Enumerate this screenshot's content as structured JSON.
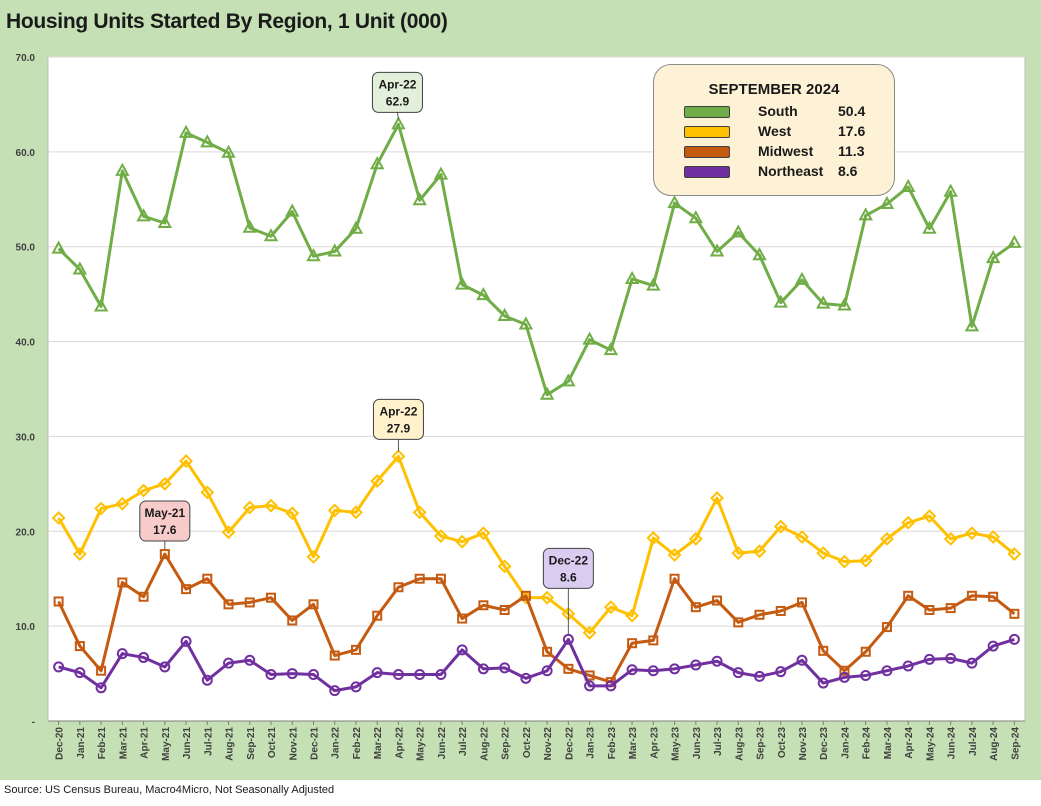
{
  "chart_data": {
    "type": "line",
    "title": "Housing Units Started By Region, 1 Unit (000)",
    "source": "Source: US Census Bureau, Macro4Micro, Not Seasonally Adjusted",
    "ylim": [
      0,
      70
    ],
    "yticks": [
      "-",
      "10.0",
      "20.0",
      "30.0",
      "40.0",
      "50.0",
      "60.0",
      "70.0"
    ],
    "grid": true,
    "categories": [
      "Dec-20",
      "Jan-21",
      "Feb-21",
      "Mar-21",
      "Apr-21",
      "May-21",
      "Jun-21",
      "Jul-21",
      "Aug-21",
      "Sep-21",
      "Oct-21",
      "Nov-21",
      "Dec-21",
      "Jan-22",
      "Feb-22",
      "Mar-22",
      "Apr-22",
      "May-22",
      "Jun-22",
      "Jul-22",
      "Aug-22",
      "Sep-22",
      "Oct-22",
      "Nov-22",
      "Dec-22",
      "Jan-23",
      "Feb-23",
      "Mar-23",
      "Apr-23",
      "May-23",
      "Jun-23",
      "Jul-23",
      "Aug-23",
      "Sep-23",
      "Oct-23",
      "Nov-23",
      "Dec-23",
      "Jan-24",
      "Feb-24",
      "Mar-24",
      "Apr-24",
      "May-24",
      "Jun-24",
      "Jul-24",
      "Aug-24",
      "Sep-24"
    ],
    "series": [
      {
        "name": "South",
        "color": "#70ad47",
        "marker": "triangle",
        "values": [
          49.8,
          47.6,
          43.7,
          58.0,
          53.2,
          52.5,
          62.0,
          61.0,
          59.9,
          52.0,
          51.1,
          53.7,
          49.0,
          49.5,
          51.9,
          58.7,
          62.9,
          54.9,
          57.6,
          46.0,
          44.9,
          42.7,
          41.8,
          34.4,
          35.8,
          40.2,
          39.1,
          46.6,
          45.9,
          54.6,
          53.0,
          49.5,
          51.5,
          49.1,
          44.1,
          46.5,
          44.0,
          43.8,
          53.3,
          54.5,
          56.3,
          51.9,
          55.8,
          41.6,
          48.8,
          50.4
        ]
      },
      {
        "name": "West",
        "color": "#ffc000",
        "marker": "diamond",
        "values": [
          21.4,
          17.6,
          22.4,
          22.9,
          24.3,
          25.0,
          27.4,
          24.1,
          19.9,
          22.5,
          22.7,
          21.9,
          17.3,
          22.2,
          22.0,
          25.3,
          27.9,
          22.0,
          19.5,
          18.9,
          19.8,
          16.3,
          13.0,
          13.0,
          11.3,
          9.3,
          12.0,
          11.1,
          19.3,
          17.5,
          19.2,
          23.5,
          17.7,
          17.9,
          20.5,
          19.4,
          17.7,
          16.8,
          16.9,
          19.2,
          20.9,
          21.6,
          19.2,
          19.8,
          19.4,
          17.6
        ]
      },
      {
        "name": "Midwest",
        "color": "#c55a11",
        "marker": "square",
        "values": [
          12.6,
          7.9,
          5.3,
          14.6,
          13.1,
          17.6,
          13.9,
          15.0,
          12.3,
          12.5,
          13.0,
          10.6,
          12.3,
          6.9,
          7.5,
          11.1,
          14.1,
          15.0,
          15.0,
          10.8,
          12.2,
          11.7,
          13.2,
          7.3,
          5.5,
          4.8,
          4.1,
          8.2,
          8.5,
          15.0,
          12.0,
          12.7,
          10.4,
          11.2,
          11.6,
          12.5,
          7.4,
          5.3,
          7.3,
          9.9,
          13.2,
          11.7,
          11.9,
          13.2,
          13.1,
          11.3
        ]
      },
      {
        "name": "Northeast",
        "color": "#7030a0",
        "marker": "circle",
        "values": [
          5.7,
          5.1,
          3.5,
          7.1,
          6.7,
          5.7,
          8.4,
          4.3,
          6.1,
          6.4,
          4.9,
          5.0,
          4.9,
          3.2,
          3.6,
          5.1,
          4.9,
          4.9,
          4.9,
          7.5,
          5.5,
          5.6,
          4.5,
          5.3,
          8.6,
          3.7,
          3.7,
          5.4,
          5.3,
          5.5,
          5.9,
          6.3,
          5.1,
          4.7,
          5.2,
          6.4,
          4.0,
          4.6,
          4.8,
          5.3,
          5.8,
          6.5,
          6.6,
          6.1,
          7.9,
          8.6
        ]
      }
    ],
    "legend": {
      "placement": "top-right",
      "title": "SEPTEMBER 2024",
      "entries": [
        {
          "name": "South",
          "value": "50.4"
        },
        {
          "name": "West",
          "value": "17.6"
        },
        {
          "name": "Midwest",
          "value": "11.3"
        },
        {
          "name": "Northeast",
          "value": "8.6"
        }
      ]
    },
    "annotations": [
      {
        "series": "South",
        "category": "Apr-22",
        "label": "Apr-22",
        "value_label": "62.9",
        "fill": "#e2efda"
      },
      {
        "series": "West",
        "category": "Apr-22",
        "label": "Apr-22",
        "value_label": "27.9",
        "fill": "#fff2cc"
      },
      {
        "series": "Midwest",
        "category": "May-21",
        "label": "May-21",
        "value_label": "17.6",
        "fill": "#f8cbcb"
      },
      {
        "series": "Northeast",
        "category": "Dec-22",
        "label": "Dec-22",
        "value_label": "8.6",
        "fill": "#d9ccf0"
      }
    ]
  }
}
